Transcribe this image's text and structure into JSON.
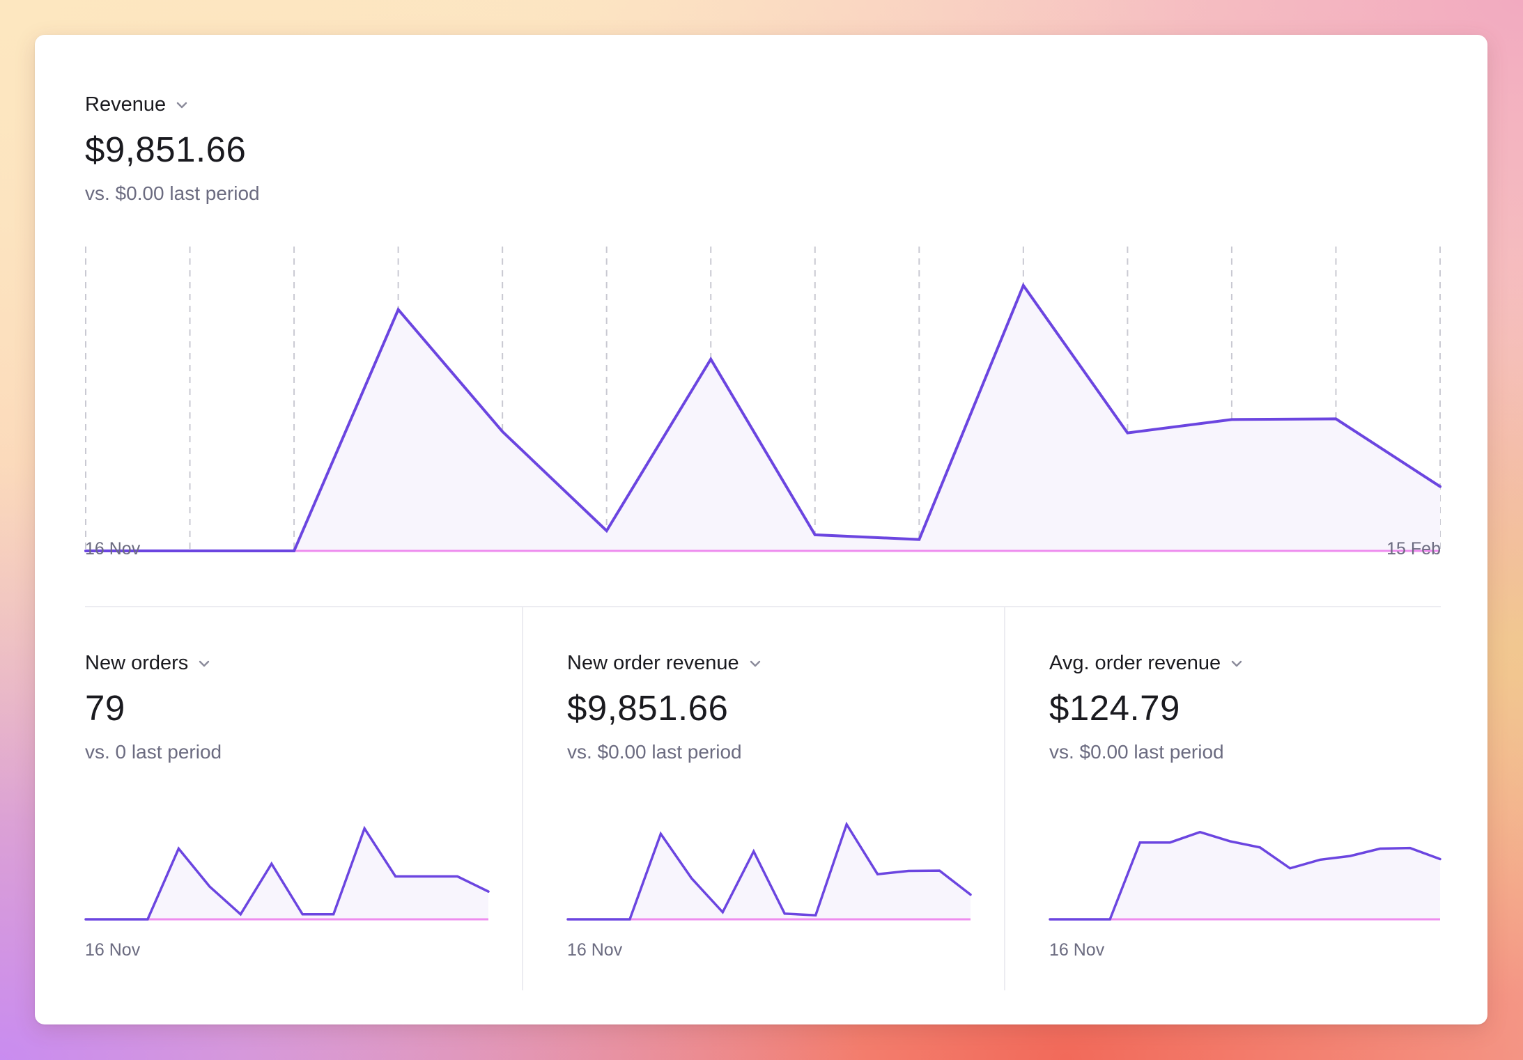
{
  "colors": {
    "line": "#6b45e0",
    "area": "#f8f5fd",
    "baseline": "#ee8cee",
    "grid": "#c9c9d2"
  },
  "main": {
    "title": "Revenue",
    "value": "$9,851.66",
    "compare": "vs. $0.00 last period",
    "x_start": "16 Nov",
    "x_end": "15 Feb"
  },
  "cards": [
    {
      "title": "New orders",
      "value": "79",
      "compare": "vs. 0 last period",
      "x_start": "16 Nov"
    },
    {
      "title": "New order revenue",
      "value": "$9,851.66",
      "compare": "vs. $0.00 last period",
      "x_start": "16 Nov"
    },
    {
      "title": "Avg. order revenue",
      "value": "$124.79",
      "compare": "vs. $0.00 last period",
      "x_start": "16 Nov"
    }
  ],
  "chart_data": [
    {
      "type": "area",
      "title": "Revenue",
      "x": [
        "16 Nov",
        "",
        "",
        "",
        "",
        "",
        "",
        "",
        "",
        "",
        "",
        "",
        "",
        "15 Feb"
      ],
      "values": [
        0,
        0,
        0,
        1800,
        890,
        150,
        1430,
        120,
        85,
        1980,
        880,
        980,
        985,
        480
      ],
      "ylim": [
        0,
        2000
      ],
      "grid": "vertical-dashed"
    },
    {
      "type": "area",
      "title": "New orders",
      "values": [
        0,
        0,
        0,
        14,
        6.5,
        1,
        11,
        1,
        1,
        18,
        8.5,
        8.5,
        8.5,
        5.5
      ],
      "ylim": [
        0,
        20
      ]
    },
    {
      "type": "area",
      "title": "New order revenue",
      "values": [
        0,
        0,
        0,
        1800,
        860,
        150,
        1430,
        120,
        85,
        2000,
        950,
        1020,
        1025,
        520
      ],
      "ylim": [
        0,
        2200
      ]
    },
    {
      "type": "area",
      "title": "Avg. order revenue",
      "values": [
        0,
        0,
        0,
        125,
        125,
        142,
        127,
        117,
        83,
        97,
        103,
        115,
        116,
        98
      ],
      "ylim": [
        0,
        170
      ]
    }
  ]
}
